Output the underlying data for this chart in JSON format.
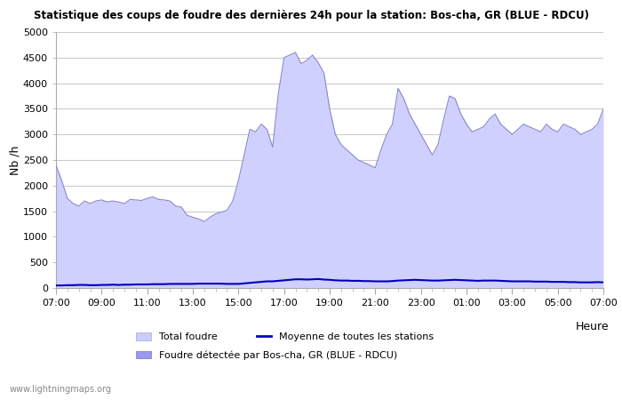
{
  "title": "Statistique des coups de foudre des dernières 24h pour la station: Bos-cha, GR (BLUE - RDCU)",
  "ylabel": "Nb /h",
  "xlabel_right": "Heure",
  "ylim": [
    0,
    5000
  ],
  "yticks": [
    0,
    500,
    1000,
    1500,
    2000,
    2500,
    3000,
    3500,
    4000,
    4500,
    5000
  ],
  "xtick_labels": [
    "07:00",
    "09:00",
    "11:00",
    "13:00",
    "15:00",
    "17:00",
    "19:00",
    "21:00",
    "23:00",
    "01:00",
    "03:00",
    "05:00",
    "07:00"
  ],
  "watermark": "www.lightningmaps.org",
  "legend": [
    {
      "label": "Total foudre",
      "color": "#ccccff",
      "type": "fill"
    },
    {
      "label": "Moyenne de toutes les stations",
      "color": "#0000cc",
      "type": "line"
    },
    {
      "label": "Foudre détectée par Bos-cha, GR (BLUE - RDCU)",
      "color": "#9999ee",
      "type": "fill"
    }
  ],
  "fill_color": "#d0d0ff",
  "fill_edge_color": "#8888cc",
  "line_color": "#0000bb",
  "background_color": "#ffffff",
  "grid_color": "#cccccc",
  "x_points": [
    0,
    0.5,
    1,
    1.5,
    2,
    2.5,
    3,
    3.5,
    4,
    4.5,
    5,
    5.5,
    6,
    6.5,
    7,
    7.5,
    8,
    8.5,
    9,
    9.5,
    10,
    10.5,
    11,
    11.5,
    12,
    12.5,
    13,
    13.5,
    14,
    14.5,
    15,
    15.5,
    16,
    16.5,
    17,
    17.5,
    18,
    18.5,
    19,
    19.5,
    20,
    20.5,
    21,
    21.5,
    22,
    22.5,
    23,
    23.5,
    24
  ],
  "total_foudre": [
    2400,
    2100,
    1750,
    1650,
    1600,
    1700,
    1650,
    1700,
    1720,
    1680,
    1700,
    1680,
    1650,
    1730,
    1720,
    1710,
    1750,
    1780,
    1730,
    1720,
    1700,
    1600,
    1580,
    1420,
    1380,
    1350,
    1300,
    1380,
    1450,
    1480,
    1520,
    1700,
    2100,
    2600,
    3100,
    3050,
    3200,
    3100,
    2750,
    3800,
    4500,
    4550,
    4600,
    4380,
    4450,
    4550,
    4400,
    4200,
    3500
  ],
  "x_points2": [
    0,
    0.5,
    1,
    1.5,
    2,
    2.5,
    3,
    3.5,
    4,
    4.5,
    5,
    5.5,
    6,
    6.5,
    7,
    7.5,
    8,
    8.5,
    9,
    9.5,
    10,
    10.5,
    11,
    11.5,
    12,
    12.5,
    13,
    13.5,
    14,
    14.5,
    15,
    15.5,
    16,
    16.5,
    17,
    17.5,
    18,
    18.5,
    19,
    19.5,
    20,
    20.5,
    21,
    21.5,
    22,
    22.5,
    23,
    23.5,
    24,
    24.5,
    25,
    25.5,
    26,
    26.5,
    27,
    27.5,
    28,
    28.5,
    29,
    29.5,
    30,
    30.5,
    31,
    31.5,
    32,
    32.5,
    33,
    33.5,
    34,
    34.5,
    35,
    35.5,
    36,
    36.5,
    37,
    37.5,
    38,
    38.5,
    39,
    39.5,
    40,
    40.5,
    41,
    41.5,
    42,
    42.5,
    43,
    43.5,
    44,
    44.5,
    45,
    45.5,
    46,
    46.5,
    47,
    47.5,
    48
  ],
  "total_foudre2": [
    2400,
    2100,
    1750,
    1650,
    1600,
    1700,
    1650,
    1700,
    1720,
    1680,
    1700,
    1680,
    1650,
    1730,
    1720,
    1710,
    1750,
    1780,
    1730,
    1720,
    1700,
    1600,
    1580,
    1420,
    1380,
    1350,
    1300,
    1380,
    1450,
    1480,
    1520,
    1700,
    2100,
    2600,
    3100,
    3050,
    3200,
    3100,
    2750,
    3800,
    4500,
    4550,
    4600,
    4380,
    4450,
    4550,
    4400,
    4200,
    3500,
    3000,
    2800,
    2700,
    2600,
    2500,
    2450,
    2400,
    2350,
    2700,
    3000,
    3200,
    3900,
    3700,
    3400,
    3200,
    3000,
    2800,
    2600,
    2800,
    3300,
    3750,
    3700,
    3400,
    3200,
    3050,
    3100,
    3150,
    3300,
    3400,
    3200,
    3100,
    3000,
    3100,
    3200,
    3150,
    3100,
    3050,
    3200,
    3100,
    3050,
    3200,
    3150,
    3100,
    3000,
    3050,
    3100,
    3200,
    3500
  ],
  "moyenne": [
    50,
    50,
    55,
    55,
    60,
    60,
    55,
    55,
    60,
    60,
    65,
    60,
    65,
    65,
    70,
    70,
    70,
    75,
    75,
    75,
    80,
    80,
    80,
    80,
    80,
    85,
    85,
    85,
    85,
    85,
    80,
    80,
    80,
    90,
    100,
    110,
    120,
    130,
    130,
    140,
    150,
    160,
    170,
    170,
    165,
    170,
    175,
    165,
    160,
    150,
    145,
    145,
    140,
    140,
    135,
    135,
    130,
    130,
    130,
    135,
    145,
    150,
    155,
    160,
    155,
    150,
    145,
    145,
    150,
    155,
    160,
    155,
    150,
    145,
    140,
    145,
    145,
    145,
    140,
    135,
    130,
    130,
    130,
    130,
    125,
    125,
    125,
    120,
    120,
    120,
    115,
    115,
    110,
    110,
    110,
    115,
    110
  ],
  "xlim": [
    0,
    48
  ]
}
